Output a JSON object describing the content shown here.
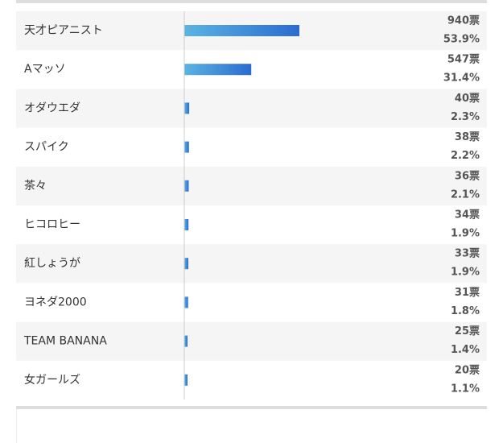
{
  "chart_data": {
    "type": "bar",
    "orientation": "horizontal",
    "categories": [
      "天才ピアニスト",
      "Aマッソ",
      "オダウエダ",
      "スパイク",
      "茶々",
      "ヒコロヒー",
      "紅しょうが",
      "ヨネダ2000",
      "TEAM BANANA",
      "女ガールズ"
    ],
    "values": [
      940,
      547,
      40,
      38,
      36,
      34,
      33,
      31,
      25,
      20
    ],
    "value_labels": [
      "940票",
      "547票",
      "40票",
      "38票",
      "36票",
      "34票",
      "33票",
      "31票",
      "25票",
      "20票"
    ],
    "percentages": [
      53.9,
      31.4,
      2.3,
      2.2,
      2.1,
      1.9,
      1.9,
      1.8,
      1.4,
      1.1
    ],
    "percentage_labels": [
      "53.9%",
      "31.4%",
      "2.3%",
      "2.2%",
      "2.1%",
      "1.9%",
      "1.9%",
      "1.8%",
      "1.4%",
      "1.1%"
    ],
    "color": [
      "#5ab4e2",
      "#2c6bd1"
    ]
  }
}
